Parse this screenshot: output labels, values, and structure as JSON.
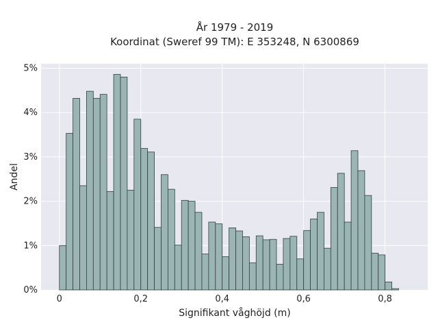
{
  "chart_data": {
    "type": "bar",
    "title_line1": "År 1979 - 2019",
    "title_line2": "Koordinat (Sweref 99 TM): E 353248, N 6300869",
    "xlabel": "Signifikant våghöjd (m)",
    "ylabel": "Andel",
    "xlim": [
      -0.045,
      0.905
    ],
    "ylim": [
      0,
      5.1
    ],
    "grid": true,
    "x_ticks": [
      {
        "value": 0,
        "label": "0"
      },
      {
        "value": 0.2,
        "label": "0,2"
      },
      {
        "value": 0.4,
        "label": "0,4"
      },
      {
        "value": 0.6,
        "label": "0,6"
      },
      {
        "value": 0.8,
        "label": "0,8"
      }
    ],
    "y_ticks": [
      {
        "value": 0,
        "label": "0%"
      },
      {
        "value": 1,
        "label": "1%"
      },
      {
        "value": 2,
        "label": "2%"
      },
      {
        "value": 3,
        "label": "3%"
      },
      {
        "value": 4,
        "label": "4%"
      },
      {
        "value": 5,
        "label": "5%"
      }
    ],
    "bin_start": 0,
    "bin_width": 0.01667,
    "values_percent": [
      1.0,
      3.53,
      4.32,
      2.35,
      4.48,
      4.32,
      4.41,
      2.22,
      4.86,
      4.8,
      2.25,
      3.85,
      3.19,
      3.11,
      1.41,
      2.6,
      2.27,
      1.01,
      2.02,
      2.0,
      1.75,
      0.81,
      1.53,
      1.49,
      0.75,
      1.4,
      1.33,
      1.2,
      0.61,
      1.22,
      1.13,
      1.14,
      0.58,
      1.16,
      1.21,
      0.7,
      1.34,
      1.6,
      1.75,
      0.94,
      2.31,
      2.63,
      1.53,
      3.14,
      2.69,
      2.13,
      0.83,
      0.79,
      0.18,
      0.03
    ],
    "colors": {
      "bar_fill": "#9bb5b4",
      "bar_stroke": "#2f3f3f",
      "plot_background": "#e8e8f0",
      "grid": "#ffffff"
    }
  }
}
